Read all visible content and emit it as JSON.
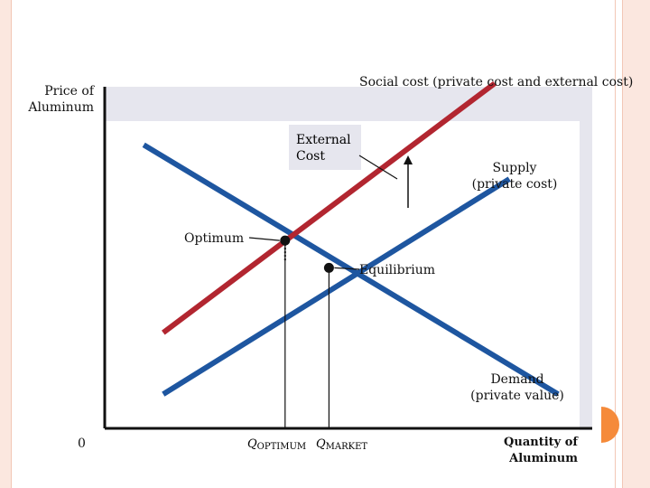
{
  "chart_data": {
    "type": "line",
    "title": "",
    "ylabel": "Price of Aluminum",
    "xlabel": "Quantity of Aluminum",
    "origin_label": "0",
    "series": [
      {
        "name": "Demand (private value)",
        "color": "#1e56a0",
        "points": [
          [
            0.08,
            0.83
          ],
          [
            0.93,
            0.1
          ]
        ]
      },
      {
        "name": "Supply (private cost)",
        "color": "#1e56a0",
        "points": [
          [
            0.12,
            0.1
          ],
          [
            0.83,
            0.73
          ]
        ]
      },
      {
        "name": "Social cost (private cost and external cost)",
        "color": "#b22630",
        "points": [
          [
            0.12,
            0.28
          ],
          [
            0.8,
            1.01
          ]
        ]
      }
    ],
    "points": {
      "optimum": {
        "label": "Optimum",
        "x": 0.37,
        "y": 0.55
      },
      "equilibrium": {
        "label": "Equilibrium",
        "x": 0.46,
        "y": 0.47
      }
    },
    "x_ticks": [
      {
        "label": "Q",
        "sub": "OPTIMUM",
        "x": 0.37
      },
      {
        "label": "Q",
        "sub": "MARKET",
        "x": 0.46
      }
    ],
    "annotations": {
      "social_cost": "Social cost (private cost and external cost)",
      "external_cost": [
        "External",
        "Cost"
      ],
      "supply": [
        "Supply",
        "(private cost)"
      ],
      "demand": [
        "Demand",
        "(private value)"
      ],
      "ylabel_lines": [
        "Price of",
        "Aluminum"
      ],
      "xlabel_lines": [
        "Quantity of",
        "Aluminum"
      ]
    },
    "xlim": [
      0,
      1
    ],
    "ylim": [
      0,
      1
    ],
    "grid": false
  }
}
